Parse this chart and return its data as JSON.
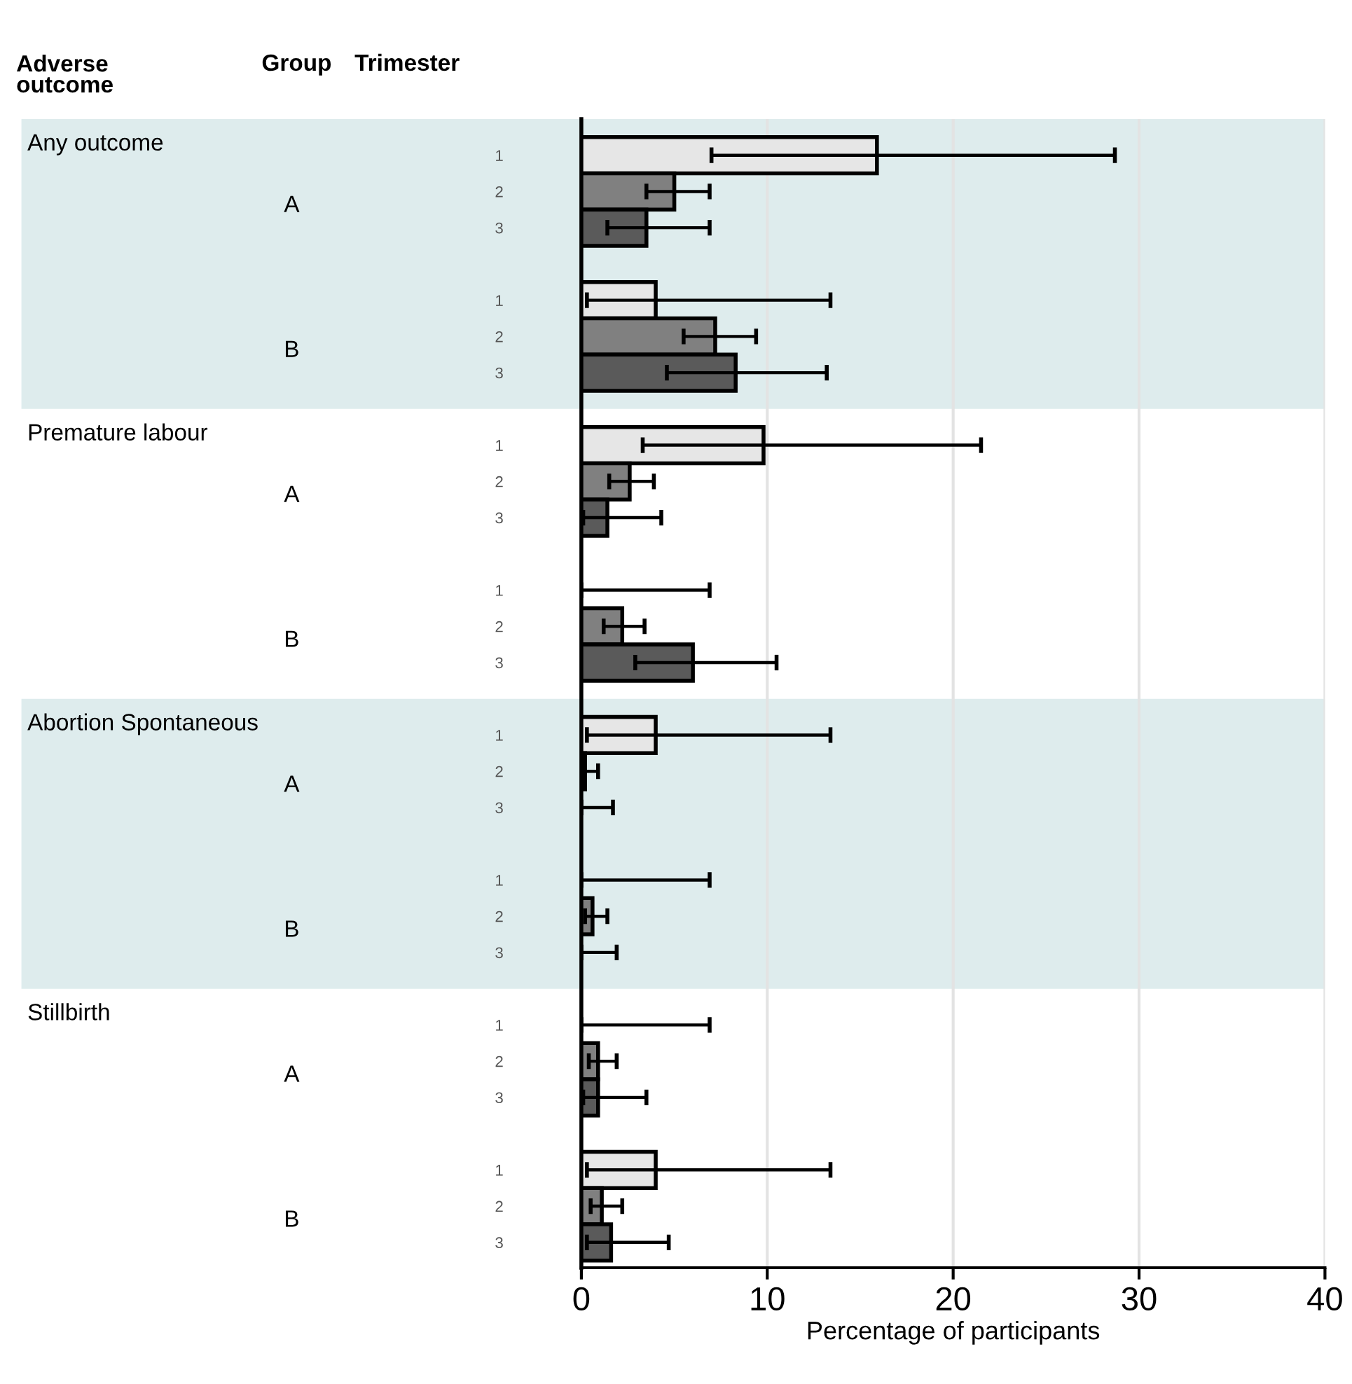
{
  "chart_data": {
    "type": "bar",
    "orientation": "horizontal",
    "xlabel": "Percentage of participants",
    "annotations": [
      "Adverse\noutcome",
      "Group",
      "Trimester",
      "Any outcome",
      "A",
      "B",
      "Premature labour",
      "A",
      "B",
      "Abortion Spontaneous",
      "A",
      "B",
      "Stillbirth",
      "A",
      "B"
    ],
    "categories": [
      "1",
      "2",
      "3",
      null,
      "1",
      "2",
      "3",
      null,
      "1",
      "2",
      "3",
      null,
      "1",
      "2",
      "3",
      null,
      "1",
      "2",
      "3",
      null,
      "1",
      "2",
      "3",
      null,
      "1",
      "2",
      "3",
      null,
      "1",
      "2",
      "3"
    ],
    "values": [
      15.9,
      5.0,
      3.5,
      null,
      4.0,
      7.2,
      8.3,
      null,
      9.8,
      2.6,
      1.4,
      null,
      0,
      2.2,
      6.0,
      null,
      4.0,
      0.2,
      0,
      null,
      0,
      0.6,
      0,
      null,
      0,
      0.9,
      0.9,
      null,
      4.0,
      1.1,
      1.6
    ],
    "errors": [
      [
        7.0,
        28.7
      ],
      [
        3.5,
        6.9
      ],
      [
        1.4,
        6.9
      ],
      null,
      [
        0.3,
        13.4
      ],
      [
        5.5,
        9.4
      ],
      [
        4.6,
        13.2
      ],
      null,
      [
        3.3,
        21.5
      ],
      [
        1.5,
        3.9
      ],
      [
        0.1,
        4.3
      ],
      null,
      [
        0,
        6.9
      ],
      [
        1.2,
        3.4
      ],
      [
        2.9,
        10.5
      ],
      null,
      [
        0.3,
        13.4
      ],
      [
        0,
        0.9
      ],
      [
        0,
        1.7
      ],
      null,
      [
        0,
        6.9
      ],
      [
        0.2,
        1.4
      ],
      [
        0,
        1.9
      ],
      null,
      [
        0,
        6.9
      ],
      [
        0.4,
        1.9
      ],
      [
        0.1,
        3.5
      ],
      null,
      [
        0.3,
        13.4
      ],
      [
        0.5,
        2.2
      ],
      [
        0.3,
        4.7
      ]
    ],
    "colors": [
      "#e6e6e6",
      "#808080",
      "#5a5a5a",
      null,
      "#e6e6e6",
      "#808080",
      "#5a5a5a",
      null,
      "#e6e6e6",
      "#808080",
      "#5a5a5a",
      null,
      "#e6e6e6",
      "#808080",
      "#5a5a5a",
      null,
      "#e6e6e6",
      "#808080",
      "#5a5a5a",
      null,
      "#e6e6e6",
      "#808080",
      "#5a5a5a",
      null,
      "#e6e6e6",
      "#808080",
      "#5a5a5a",
      null,
      "#e6e6e6",
      "#808080",
      "#5a5a5a"
    ],
    "xlim": [
      0,
      40
    ],
    "xticks": [
      0,
      10,
      20,
      30,
      40
    ],
    "grid": "x",
    "legend": false
  }
}
